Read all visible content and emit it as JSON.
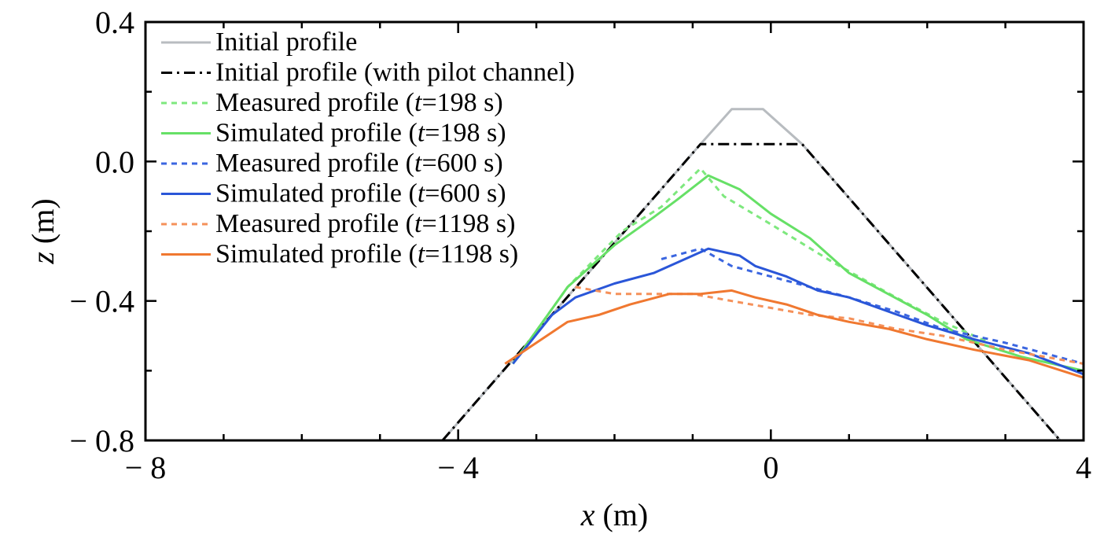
{
  "chart_data": {
    "type": "line",
    "xlabel": "x (m)",
    "ylabel": "z (m)",
    "xlim": [
      -8,
      4
    ],
    "ylim": [
      -0.8,
      0.4
    ],
    "x_ticks": [
      -8,
      -4,
      0,
      4
    ],
    "y_ticks": [
      -0.8,
      -0.4,
      0.0,
      0.4
    ],
    "x_tick_labels": [
      "− 8",
      "− 4",
      "0",
      "4"
    ],
    "y_tick_labels": [
      "− 0.8",
      "− 0.4",
      "0.0",
      "0.4"
    ],
    "grid": false,
    "legend_position": "top-left",
    "series": [
      {
        "name": "Initial profile",
        "color": "#b8bcc0",
        "dash": "solid",
        "points": [
          [
            -4.2,
            -0.8
          ],
          [
            -0.9,
            0.05
          ],
          [
            -0.5,
            0.15
          ],
          [
            -0.1,
            0.15
          ],
          [
            0.4,
            0.05
          ],
          [
            3.7,
            -0.8
          ]
        ]
      },
      {
        "name": "Initial profile (with pilot channel)",
        "color": "#000000",
        "dash": "dashdot",
        "points": [
          [
            -4.2,
            -0.8
          ],
          [
            -0.9,
            0.05
          ],
          [
            0.4,
            0.05
          ],
          [
            3.7,
            -0.8
          ]
        ]
      },
      {
        "name": "Measured profile (t=198 s)",
        "color": "#7ee87e",
        "dash": "dotted",
        "points": [
          [
            -3.3,
            -0.58
          ],
          [
            -2.6,
            -0.36
          ],
          [
            -1.9,
            -0.2
          ],
          [
            -1.4,
            -0.13
          ],
          [
            -0.9,
            -0.02
          ],
          [
            -0.6,
            -0.1
          ],
          [
            0,
            -0.18
          ],
          [
            0.8,
            -0.29
          ],
          [
            1.6,
            -0.39
          ],
          [
            2.2,
            -0.46
          ],
          [
            2.8,
            -0.52
          ]
        ]
      },
      {
        "name": "Simulated profile (t=198 s)",
        "color": "#66e066",
        "dash": "solid",
        "points": [
          [
            -3.3,
            -0.58
          ],
          [
            -2.6,
            -0.36
          ],
          [
            -2.0,
            -0.24
          ],
          [
            -1.5,
            -0.16
          ],
          [
            -1.2,
            -0.11
          ],
          [
            -0.8,
            -0.04
          ],
          [
            -0.4,
            -0.08
          ],
          [
            0,
            -0.15
          ],
          [
            0.5,
            -0.22
          ],
          [
            1.0,
            -0.32
          ],
          [
            1.5,
            -0.38
          ],
          [
            2.0,
            -0.44
          ],
          [
            2.5,
            -0.51
          ],
          [
            3.2,
            -0.56
          ],
          [
            4.0,
            -0.6
          ]
        ]
      },
      {
        "name": "Measured profile (t=600 s)",
        "color": "#3b66e0",
        "dash": "dotted",
        "points": [
          [
            -1.4,
            -0.28
          ],
          [
            -0.9,
            -0.25
          ],
          [
            -0.5,
            -0.3
          ],
          [
            0,
            -0.33
          ],
          [
            0.5,
            -0.36
          ],
          [
            1.0,
            -0.39
          ],
          [
            1.6,
            -0.43
          ],
          [
            2.2,
            -0.48
          ],
          [
            3.0,
            -0.52
          ],
          [
            4.0,
            -0.58
          ]
        ]
      },
      {
        "name": "Simulated profile (t=600 s)",
        "color": "#2a56d8",
        "dash": "solid",
        "points": [
          [
            -3.3,
            -0.58
          ],
          [
            -2.8,
            -0.44
          ],
          [
            -2.5,
            -0.39
          ],
          [
            -2.0,
            -0.35
          ],
          [
            -1.5,
            -0.32
          ],
          [
            -1.1,
            -0.28
          ],
          [
            -0.8,
            -0.25
          ],
          [
            -0.4,
            -0.27
          ],
          [
            -0.2,
            -0.3
          ],
          [
            0.2,
            -0.33
          ],
          [
            0.6,
            -0.37
          ],
          [
            1.0,
            -0.39
          ],
          [
            1.5,
            -0.43
          ],
          [
            2.0,
            -0.47
          ],
          [
            2.6,
            -0.51
          ],
          [
            3.3,
            -0.55
          ],
          [
            4.0,
            -0.61
          ]
        ]
      },
      {
        "name": "Measured profile (t=1198 s)",
        "color": "#f5915a",
        "dash": "dotted",
        "points": [
          [
            -2.5,
            -0.36
          ],
          [
            -2.0,
            -0.38
          ],
          [
            -1.5,
            -0.38
          ],
          [
            -1.0,
            -0.38
          ],
          [
            -0.5,
            -0.4
          ],
          [
            0,
            -0.42
          ],
          [
            0.5,
            -0.44
          ],
          [
            1.0,
            -0.45
          ],
          [
            1.6,
            -0.48
          ],
          [
            2.2,
            -0.5
          ],
          [
            3.0,
            -0.54
          ],
          [
            4.0,
            -0.58
          ]
        ]
      },
      {
        "name": "Simulated profile (t=1198 s)",
        "color": "#f07830",
        "dash": "solid",
        "points": [
          [
            -3.4,
            -0.58
          ],
          [
            -3.0,
            -0.52
          ],
          [
            -2.6,
            -0.46
          ],
          [
            -2.2,
            -0.44
          ],
          [
            -1.8,
            -0.41
          ],
          [
            -1.3,
            -0.38
          ],
          [
            -0.9,
            -0.38
          ],
          [
            -0.5,
            -0.37
          ],
          [
            -0.2,
            -0.39
          ],
          [
            0.2,
            -0.41
          ],
          [
            0.6,
            -0.44
          ],
          [
            1.0,
            -0.46
          ],
          [
            1.5,
            -0.48
          ],
          [
            2.0,
            -0.51
          ],
          [
            2.6,
            -0.54
          ],
          [
            3.3,
            -0.57
          ],
          [
            4.0,
            -0.62
          ]
        ]
      }
    ]
  }
}
